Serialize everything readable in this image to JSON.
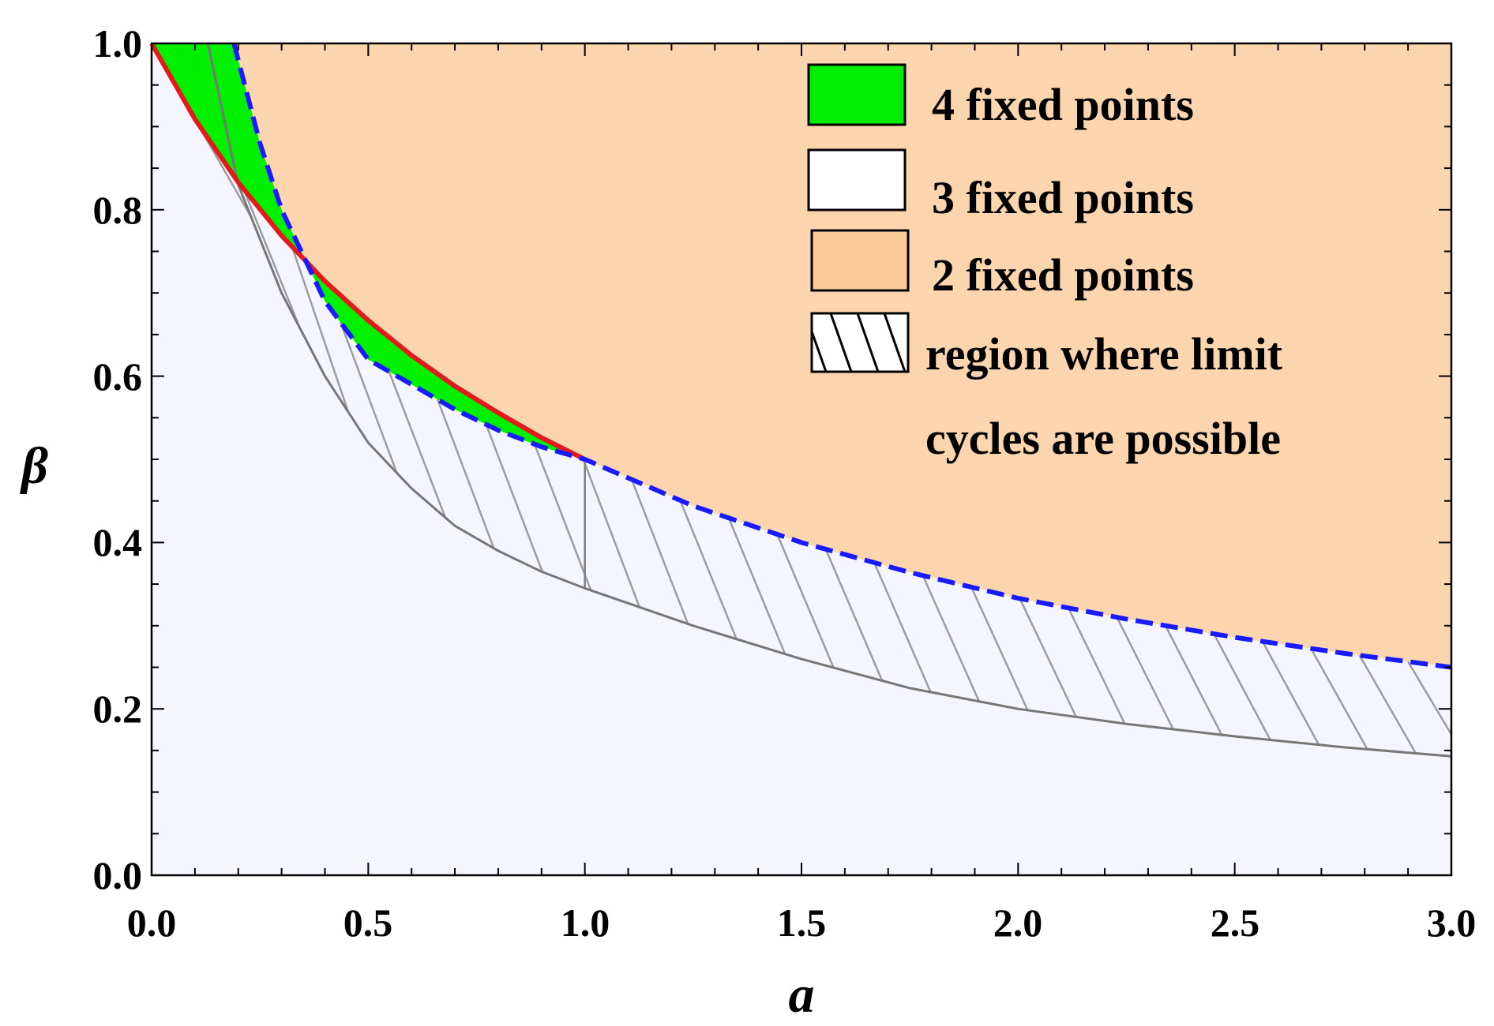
{
  "chart_data": {
    "type": "area",
    "title": "",
    "xlabel": "a",
    "ylabel": "β",
    "xlim": [
      0,
      3
    ],
    "ylim": [
      0,
      1
    ],
    "x_ticks": [
      "0.0",
      "0.5",
      "1.0",
      "1.5",
      "2.0",
      "2.5",
      "3.0"
    ],
    "y_ticks": [
      "0.0",
      "0.2",
      "0.4",
      "0.6",
      "0.8",
      "1.0"
    ],
    "grid": false,
    "legend_position": "top-right",
    "legend": [
      {
        "label": "4 fixed points",
        "color": "#00f000",
        "pattern": "solid"
      },
      {
        "label": "3 fixed points",
        "color": "#ffffff",
        "pattern": "solid"
      },
      {
        "label": "2 fixed points",
        "color": "#fdcb98",
        "pattern": "solid"
      },
      {
        "label_lines": [
          "region where limit",
          "cycles are possible"
        ],
        "color": "#ffffff",
        "pattern": "hatch"
      }
    ],
    "colors": {
      "region_two_fixed_points": "#fbd5ae",
      "region_four_fixed_points": "#00f000",
      "region_background": "#f5f6fd",
      "red_curve": "#e31a1c",
      "blue_dashed_curve": "#1a1aff",
      "hatch": "#7f7f7f"
    },
    "series": [
      {
        "style": "solid-red",
        "x": [
          0.0,
          0.1,
          0.2,
          0.3,
          0.4,
          0.5,
          0.6,
          0.7,
          0.8,
          0.9,
          1.0
        ],
        "y": [
          1.0,
          0.909,
          0.833,
          0.769,
          0.714,
          0.667,
          0.625,
          0.588,
          0.556,
          0.526,
          0.5
        ]
      },
      {
        "style": "dashed-blue",
        "x": [
          0.19,
          0.25,
          0.3,
          0.4,
          0.5,
          0.6,
          0.7,
          0.8,
          0.9,
          1.0,
          1.25,
          1.5,
          1.75,
          2.0,
          2.25,
          2.5,
          2.75,
          3.0
        ],
        "y": [
          1.0,
          0.88,
          0.8,
          0.69,
          0.62,
          0.59,
          0.56,
          0.535,
          0.515,
          0.5,
          0.444,
          0.4,
          0.364,
          0.333,
          0.308,
          0.286,
          0.267,
          0.25
        ]
      },
      {
        "style": "lower-hatch-boundary",
        "x": [
          0.13,
          0.2,
          0.3,
          0.4,
          0.5,
          0.6,
          0.7,
          0.8,
          0.9,
          1.0,
          1.25,
          1.5,
          1.75,
          2.0,
          2.25,
          2.5,
          2.75,
          3.0
        ],
        "y": [
          1.0,
          0.83,
          0.7,
          0.6,
          0.52,
          0.465,
          0.42,
          0.39,
          0.365,
          0.345,
          0.3,
          0.26,
          0.225,
          0.2,
          0.182,
          0.167,
          0.154,
          0.143
        ]
      }
    ]
  }
}
